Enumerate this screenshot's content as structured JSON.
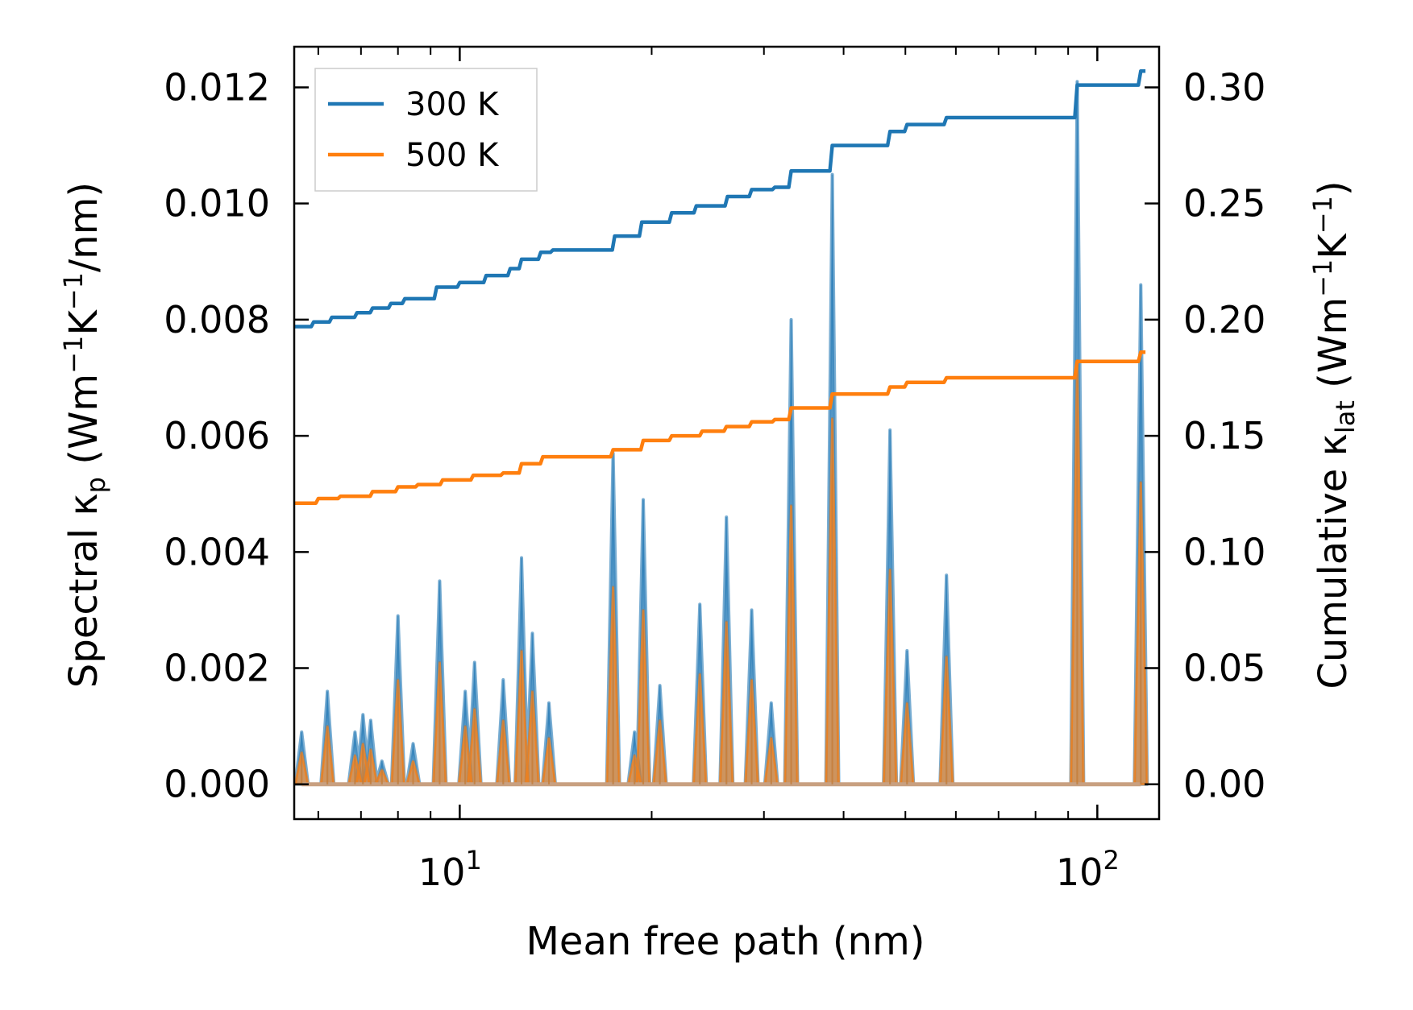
{
  "chart_data": {
    "type": "line",
    "xlabel": "Mean free path (nm)",
    "ylabel_left": "Spectral κ",
    "ylabel_left_sub": "p",
    "ylabel_left_unit": " (Wm",
    "ylabel_left_unit2": "K",
    "ylabel_left_unit3": "/nm)",
    "ylabel_right": "Cumulative κ",
    "ylabel_right_sub": "lat",
    "ylabel_right_unit": " (Wm",
    "ylabel_right_unit2": "K",
    "ylabel_right_unit3": ")",
    "exp_minus1": "−1",
    "x_scale": "log",
    "xlim": [
      5.5,
      125
    ],
    "ylim_left": [
      -0.0006,
      0.0127
    ],
    "ylim_right": [
      -0.015,
      0.3175
    ],
    "x_ticks": [
      {
        "value": 10,
        "base": "10",
        "exp": "1"
      },
      {
        "value": 100,
        "base": "10",
        "exp": "2"
      }
    ],
    "y_left_ticks": [
      {
        "value": 0.0,
        "label": "0.000"
      },
      {
        "value": 0.002,
        "label": "0.002"
      },
      {
        "value": 0.004,
        "label": "0.004"
      },
      {
        "value": 0.006,
        "label": "0.006"
      },
      {
        "value": 0.008,
        "label": "0.008"
      },
      {
        "value": 0.01,
        "label": "0.010"
      },
      {
        "value": 0.012,
        "label": "0.012"
      }
    ],
    "y_right_ticks": [
      {
        "value": 0.0,
        "label": "0.00"
      },
      {
        "value": 0.05,
        "label": "0.05"
      },
      {
        "value": 0.1,
        "label": "0.10"
      },
      {
        "value": 0.15,
        "label": "0.15"
      },
      {
        "value": 0.2,
        "label": "0.20"
      },
      {
        "value": 0.25,
        "label": "0.25"
      },
      {
        "value": 0.3,
        "label": "0.30"
      }
    ],
    "legend": {
      "position": "top-left",
      "entries": [
        {
          "name": "300 K",
          "color": "#1f77b4"
        },
        {
          "name": "500 K",
          "color": "#ff7f0e"
        }
      ]
    },
    "spectral_peaks_300K": [
      [
        5.65,
        0.0009
      ],
      [
        6.2,
        0.0016
      ],
      [
        6.85,
        0.0009
      ],
      [
        7.05,
        0.0012
      ],
      [
        7.25,
        0.0011
      ],
      [
        7.55,
        0.0004
      ],
      [
        8.0,
        0.0029
      ],
      [
        8.45,
        0.0007
      ],
      [
        9.3,
        0.0035
      ],
      [
        10.2,
        0.0016
      ],
      [
        10.55,
        0.0021
      ],
      [
        11.7,
        0.0018
      ],
      [
        12.5,
        0.0039
      ],
      [
        13.0,
        0.0026
      ],
      [
        13.8,
        0.0014
      ],
      [
        17.4,
        0.0057
      ],
      [
        18.8,
        0.0009
      ],
      [
        19.4,
        0.0049
      ],
      [
        20.6,
        0.0017
      ],
      [
        23.8,
        0.0031
      ],
      [
        26.2,
        0.0046
      ],
      [
        28.7,
        0.003
      ],
      [
        30.8,
        0.0014
      ],
      [
        33.1,
        0.008
      ],
      [
        38.4,
        0.0105
      ],
      [
        47.3,
        0.0061
      ],
      [
        50.3,
        0.0023
      ],
      [
        58.0,
        0.0036
      ],
      [
        93.0,
        0.0121
      ],
      [
        117.0,
        0.0086
      ]
    ],
    "spectral_peaks_500K": [
      [
        5.65,
        0.00055
      ],
      [
        6.2,
        0.001
      ],
      [
        6.85,
        0.0005
      ],
      [
        7.05,
        0.0007
      ],
      [
        7.25,
        0.0006
      ],
      [
        7.55,
        0.00025
      ],
      [
        8.0,
        0.0018
      ],
      [
        8.45,
        0.0004
      ],
      [
        9.3,
        0.0021
      ],
      [
        10.2,
        0.001
      ],
      [
        10.55,
        0.0013
      ],
      [
        11.7,
        0.0011
      ],
      [
        12.5,
        0.0023
      ],
      [
        13.0,
        0.0016
      ],
      [
        13.8,
        0.0008
      ],
      [
        17.4,
        0.0034
      ],
      [
        18.8,
        0.0005
      ],
      [
        19.4,
        0.003
      ],
      [
        20.6,
        0.0011
      ],
      [
        23.8,
        0.0019
      ],
      [
        26.2,
        0.0028
      ],
      [
        28.7,
        0.0018
      ],
      [
        30.8,
        0.0008
      ],
      [
        33.1,
        0.0048
      ],
      [
        38.4,
        0.0063
      ],
      [
        47.3,
        0.0037
      ],
      [
        50.3,
        0.0014
      ],
      [
        58.0,
        0.0022
      ],
      [
        93.0,
        0.0073
      ],
      [
        117.0,
        0.0052
      ]
    ],
    "cumulative_300K": [
      [
        5.5,
        0.197
      ],
      [
        5.9,
        0.199
      ],
      [
        6.3,
        0.201
      ],
      [
        6.9,
        0.203
      ],
      [
        7.3,
        0.205
      ],
      [
        7.8,
        0.207
      ],
      [
        8.2,
        0.209
      ],
      [
        9.2,
        0.214
      ],
      [
        10.0,
        0.216
      ],
      [
        11.0,
        0.219
      ],
      [
        12.0,
        0.222
      ],
      [
        12.5,
        0.226
      ],
      [
        13.4,
        0.229
      ],
      [
        14.0,
        0.23
      ],
      [
        17.5,
        0.236
      ],
      [
        19.3,
        0.242
      ],
      [
        21.5,
        0.246
      ],
      [
        23.5,
        0.249
      ],
      [
        26.3,
        0.253
      ],
      [
        28.7,
        0.256
      ],
      [
        31.2,
        0.257
      ],
      [
        33.1,
        0.264
      ],
      [
        38.4,
        0.275
      ],
      [
        47.3,
        0.281
      ],
      [
        50.3,
        0.284
      ],
      [
        58.0,
        0.287
      ],
      [
        93.0,
        0.301
      ],
      [
        117.0,
        0.307
      ]
    ],
    "cumulative_500K": [
      [
        5.5,
        0.121
      ],
      [
        6.0,
        0.123
      ],
      [
        6.5,
        0.124
      ],
      [
        7.3,
        0.126
      ],
      [
        8.0,
        0.128
      ],
      [
        8.6,
        0.129
      ],
      [
        9.4,
        0.131
      ],
      [
        10.5,
        0.133
      ],
      [
        11.7,
        0.134
      ],
      [
        12.5,
        0.138
      ],
      [
        13.5,
        0.141
      ],
      [
        17.4,
        0.144
      ],
      [
        19.4,
        0.148
      ],
      [
        21.5,
        0.15
      ],
      [
        24.0,
        0.152
      ],
      [
        26.2,
        0.154
      ],
      [
        28.7,
        0.156
      ],
      [
        31.2,
        0.157
      ],
      [
        33.1,
        0.162
      ],
      [
        38.4,
        0.168
      ],
      [
        47.3,
        0.171
      ],
      [
        50.3,
        0.173
      ],
      [
        58.0,
        0.175
      ],
      [
        93.0,
        0.182
      ],
      [
        117.0,
        0.186
      ]
    ]
  }
}
